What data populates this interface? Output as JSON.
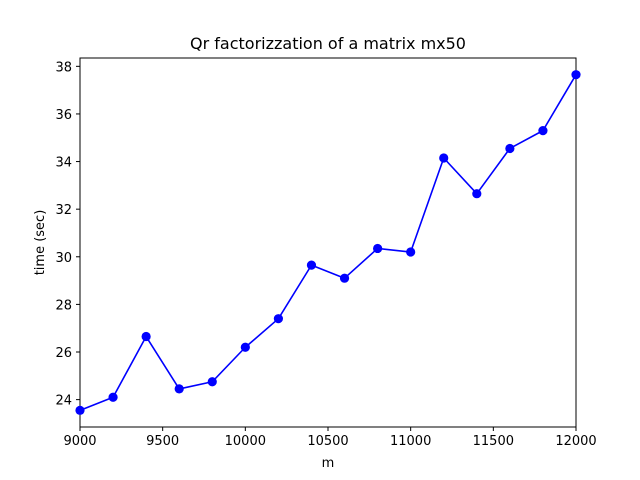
{
  "chart_data": {
    "type": "line",
    "title": "Qr factorizzation of a matrix mx50",
    "xlabel": "m",
    "ylabel": "time (sec)",
    "xlim": [
      9000,
      12000
    ],
    "ylim": [
      22.85,
      38.35
    ],
    "xticks": [
      9000,
      9500,
      10000,
      10500,
      11000,
      11500,
      12000
    ],
    "yticks": [
      24,
      26,
      28,
      30,
      32,
      34,
      36,
      38
    ],
    "grid": false,
    "series": [
      {
        "color": "#0000ff",
        "marker": "circle",
        "x": [
          9000,
          9200,
          9400,
          9600,
          9800,
          10000,
          10200,
          10400,
          10600,
          10800,
          11000,
          11200,
          11400,
          11600,
          11800,
          12000
        ],
        "y": [
          23.55,
          24.1,
          26.65,
          24.45,
          24.75,
          26.2,
          27.4,
          29.65,
          29.1,
          30.35,
          30.2,
          34.15,
          32.65,
          34.55,
          35.3,
          37.65
        ]
      }
    ]
  }
}
